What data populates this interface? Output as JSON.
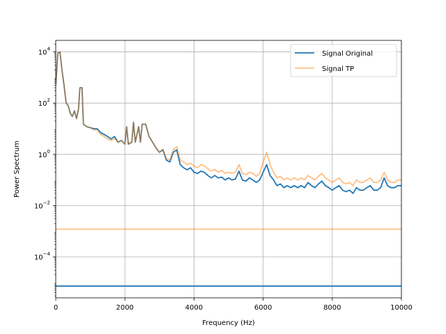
{
  "chart_data": {
    "type": "line",
    "title": "",
    "xlabel": "Frequency (Hz)",
    "ylabel": "Power Spectrum",
    "xlim": [
      0,
      10000
    ],
    "ylim_log10": [
      -5.6,
      4.45
    ],
    "yscale": "log",
    "grid": true,
    "legend_placement": "top-right",
    "x_ticks": [
      0,
      2000,
      4000,
      6000,
      8000,
      10000
    ],
    "x_tick_labels": [
      "0",
      "2000",
      "4000",
      "6000",
      "8000",
      "10000"
    ],
    "y_ticks_log10": [
      4,
      2,
      0,
      -2,
      -4
    ],
    "y_tick_labels": [
      {
        "base": "10",
        "exp": "4"
      },
      {
        "base": "10",
        "exp": "2"
      },
      {
        "base": "10",
        "exp": "0"
      },
      {
        "base": "10",
        "exp": "−2"
      },
      {
        "base": "10",
        "exp": "−4"
      }
    ],
    "series": [
      {
        "name": "Signal Original",
        "color": "#1f77b4",
        "opacity": 1.0,
        "baseline_value": 7.2e-06,
        "points": [
          [
            0,
            500
          ],
          [
            60,
            9000
          ],
          [
            120,
            10000
          ],
          [
            180,
            2000
          ],
          [
            240,
            500
          ],
          [
            300,
            100
          ],
          [
            360,
            80
          ],
          [
            420,
            40
          ],
          [
            480,
            30
          ],
          [
            540,
            50
          ],
          [
            600,
            25
          ],
          [
            660,
            60
          ],
          [
            700,
            400
          ],
          [
            760,
            400
          ],
          [
            800,
            15
          ],
          [
            900,
            12
          ],
          [
            1000,
            11
          ],
          [
            1100,
            10
          ],
          [
            1200,
            10
          ],
          [
            1300,
            7
          ],
          [
            1400,
            6
          ],
          [
            1500,
            5
          ],
          [
            1600,
            4
          ],
          [
            1700,
            5
          ],
          [
            1800,
            3
          ],
          [
            1900,
            3.5
          ],
          [
            2000,
            2.5
          ],
          [
            2050,
            12
          ],
          [
            2100,
            2.5
          ],
          [
            2200,
            3
          ],
          [
            2250,
            18
          ],
          [
            2300,
            3
          ],
          [
            2400,
            12
          ],
          [
            2450,
            3
          ],
          [
            2500,
            15
          ],
          [
            2600,
            15
          ],
          [
            2700,
            5
          ],
          [
            2800,
            3
          ],
          [
            2900,
            1.8
          ],
          [
            3000,
            1.2
          ],
          [
            3100,
            1.5
          ],
          [
            3200,
            0.6
          ],
          [
            3300,
            0.5
          ],
          [
            3400,
            1.2
          ],
          [
            3500,
            1.5
          ],
          [
            3600,
            0.4
          ],
          [
            3700,
            0.3
          ],
          [
            3800,
            0.25
          ],
          [
            3900,
            0.3
          ],
          [
            4000,
            0.2
          ],
          [
            4100,
            0.18
          ],
          [
            4200,
            0.22
          ],
          [
            4300,
            0.2
          ],
          [
            4400,
            0.15
          ],
          [
            4500,
            0.12
          ],
          [
            4600,
            0.15
          ],
          [
            4700,
            0.12
          ],
          [
            4800,
            0.13
          ],
          [
            4900,
            0.1
          ],
          [
            5000,
            0.12
          ],
          [
            5100,
            0.1
          ],
          [
            5200,
            0.11
          ],
          [
            5300,
            0.22
          ],
          [
            5400,
            0.1
          ],
          [
            5500,
            0.09
          ],
          [
            5600,
            0.12
          ],
          [
            5700,
            0.1
          ],
          [
            5800,
            0.08
          ],
          [
            5900,
            0.1
          ],
          [
            6000,
            0.2
          ],
          [
            6100,
            0.4
          ],
          [
            6200,
            0.15
          ],
          [
            6300,
            0.1
          ],
          [
            6400,
            0.06
          ],
          [
            6500,
            0.07
          ],
          [
            6600,
            0.05
          ],
          [
            6700,
            0.06
          ],
          [
            6800,
            0.05
          ],
          [
            6900,
            0.06
          ],
          [
            7000,
            0.05
          ],
          [
            7100,
            0.06
          ],
          [
            7200,
            0.05
          ],
          [
            7300,
            0.08
          ],
          [
            7400,
            0.06
          ],
          [
            7500,
            0.05
          ],
          [
            7600,
            0.07
          ],
          [
            7700,
            0.09
          ],
          [
            7800,
            0.06
          ],
          [
            7900,
            0.05
          ],
          [
            8000,
            0.04
          ],
          [
            8100,
            0.05
          ],
          [
            8200,
            0.06
          ],
          [
            8300,
            0.04
          ],
          [
            8400,
            0.035
          ],
          [
            8500,
            0.04
          ],
          [
            8600,
            0.03
          ],
          [
            8700,
            0.05
          ],
          [
            8800,
            0.04
          ],
          [
            8900,
            0.04
          ],
          [
            9000,
            0.05
          ],
          [
            9100,
            0.06
          ],
          [
            9200,
            0.04
          ],
          [
            9300,
            0.04
          ],
          [
            9400,
            0.05
          ],
          [
            9500,
            0.12
          ],
          [
            9600,
            0.06
          ],
          [
            9700,
            0.05
          ],
          [
            9800,
            0.05
          ],
          [
            9900,
            0.06
          ],
          [
            10000,
            0.06
          ]
        ]
      },
      {
        "name": "Signal TP",
        "color": "#ff7f0e",
        "opacity": 0.5,
        "baseline_value": 0.0012,
        "points": [
          [
            0,
            500
          ],
          [
            60,
            9000
          ],
          [
            120,
            10000
          ],
          [
            180,
            2000
          ],
          [
            240,
            500
          ],
          [
            300,
            100
          ],
          [
            360,
            80
          ],
          [
            420,
            40
          ],
          [
            480,
            30
          ],
          [
            540,
            50
          ],
          [
            600,
            25
          ],
          [
            660,
            60
          ],
          [
            700,
            400
          ],
          [
            760,
            400
          ],
          [
            800,
            15
          ],
          [
            900,
            12
          ],
          [
            1000,
            11
          ],
          [
            1100,
            9
          ],
          [
            1200,
            9
          ],
          [
            1300,
            6
          ],
          [
            1400,
            5
          ],
          [
            1500,
            4
          ],
          [
            1600,
            3.5
          ],
          [
            1700,
            4
          ],
          [
            1800,
            3
          ],
          [
            1900,
            3.5
          ],
          [
            2000,
            2.5
          ],
          [
            2050,
            12
          ],
          [
            2100,
            2.5
          ],
          [
            2200,
            3
          ],
          [
            2250,
            18
          ],
          [
            2300,
            3
          ],
          [
            2400,
            12
          ],
          [
            2450,
            3
          ],
          [
            2500,
            15
          ],
          [
            2600,
            15
          ],
          [
            2700,
            5
          ],
          [
            2800,
            3
          ],
          [
            2900,
            1.8
          ],
          [
            3000,
            1.2
          ],
          [
            3100,
            1.6
          ],
          [
            3200,
            0.7
          ],
          [
            3300,
            0.6
          ],
          [
            3400,
            1.5
          ],
          [
            3500,
            2
          ],
          [
            3600,
            0.6
          ],
          [
            3700,
            0.5
          ],
          [
            3800,
            0.4
          ],
          [
            3900,
            0.45
          ],
          [
            4000,
            0.35
          ],
          [
            4100,
            0.3
          ],
          [
            4200,
            0.4
          ],
          [
            4300,
            0.35
          ],
          [
            4400,
            0.28
          ],
          [
            4500,
            0.22
          ],
          [
            4600,
            0.26
          ],
          [
            4700,
            0.2
          ],
          [
            4800,
            0.24
          ],
          [
            4900,
            0.18
          ],
          [
            5000,
            0.2
          ],
          [
            5100,
            0.18
          ],
          [
            5200,
            0.2
          ],
          [
            5300,
            0.4
          ],
          [
            5400,
            0.18
          ],
          [
            5500,
            0.16
          ],
          [
            5600,
            0.2
          ],
          [
            5700,
            0.18
          ],
          [
            5800,
            0.14
          ],
          [
            5900,
            0.18
          ],
          [
            6000,
            0.5
          ],
          [
            6100,
            1.2
          ],
          [
            6200,
            0.4
          ],
          [
            6300,
            0.2
          ],
          [
            6400,
            0.12
          ],
          [
            6500,
            0.14
          ],
          [
            6600,
            0.1
          ],
          [
            6700,
            0.12
          ],
          [
            6800,
            0.1
          ],
          [
            6900,
            0.12
          ],
          [
            7000,
            0.1
          ],
          [
            7100,
            0.12
          ],
          [
            7200,
            0.1
          ],
          [
            7300,
            0.15
          ],
          [
            7400,
            0.12
          ],
          [
            7500,
            0.1
          ],
          [
            7600,
            0.14
          ],
          [
            7700,
            0.18
          ],
          [
            7800,
            0.12
          ],
          [
            7900,
            0.1
          ],
          [
            8000,
            0.08
          ],
          [
            8100,
            0.1
          ],
          [
            8200,
            0.12
          ],
          [
            8300,
            0.08
          ],
          [
            8400,
            0.07
          ],
          [
            8500,
            0.08
          ],
          [
            8600,
            0.06
          ],
          [
            8700,
            0.1
          ],
          [
            8800,
            0.08
          ],
          [
            8900,
            0.08
          ],
          [
            9000,
            0.1
          ],
          [
            9100,
            0.12
          ],
          [
            9200,
            0.08
          ],
          [
            9300,
            0.08
          ],
          [
            9400,
            0.1
          ],
          [
            9500,
            0.2
          ],
          [
            9600,
            0.1
          ],
          [
            9700,
            0.08
          ],
          [
            9800,
            0.08
          ],
          [
            9900,
            0.1
          ],
          [
            10000,
            0.1
          ]
        ]
      }
    ]
  }
}
